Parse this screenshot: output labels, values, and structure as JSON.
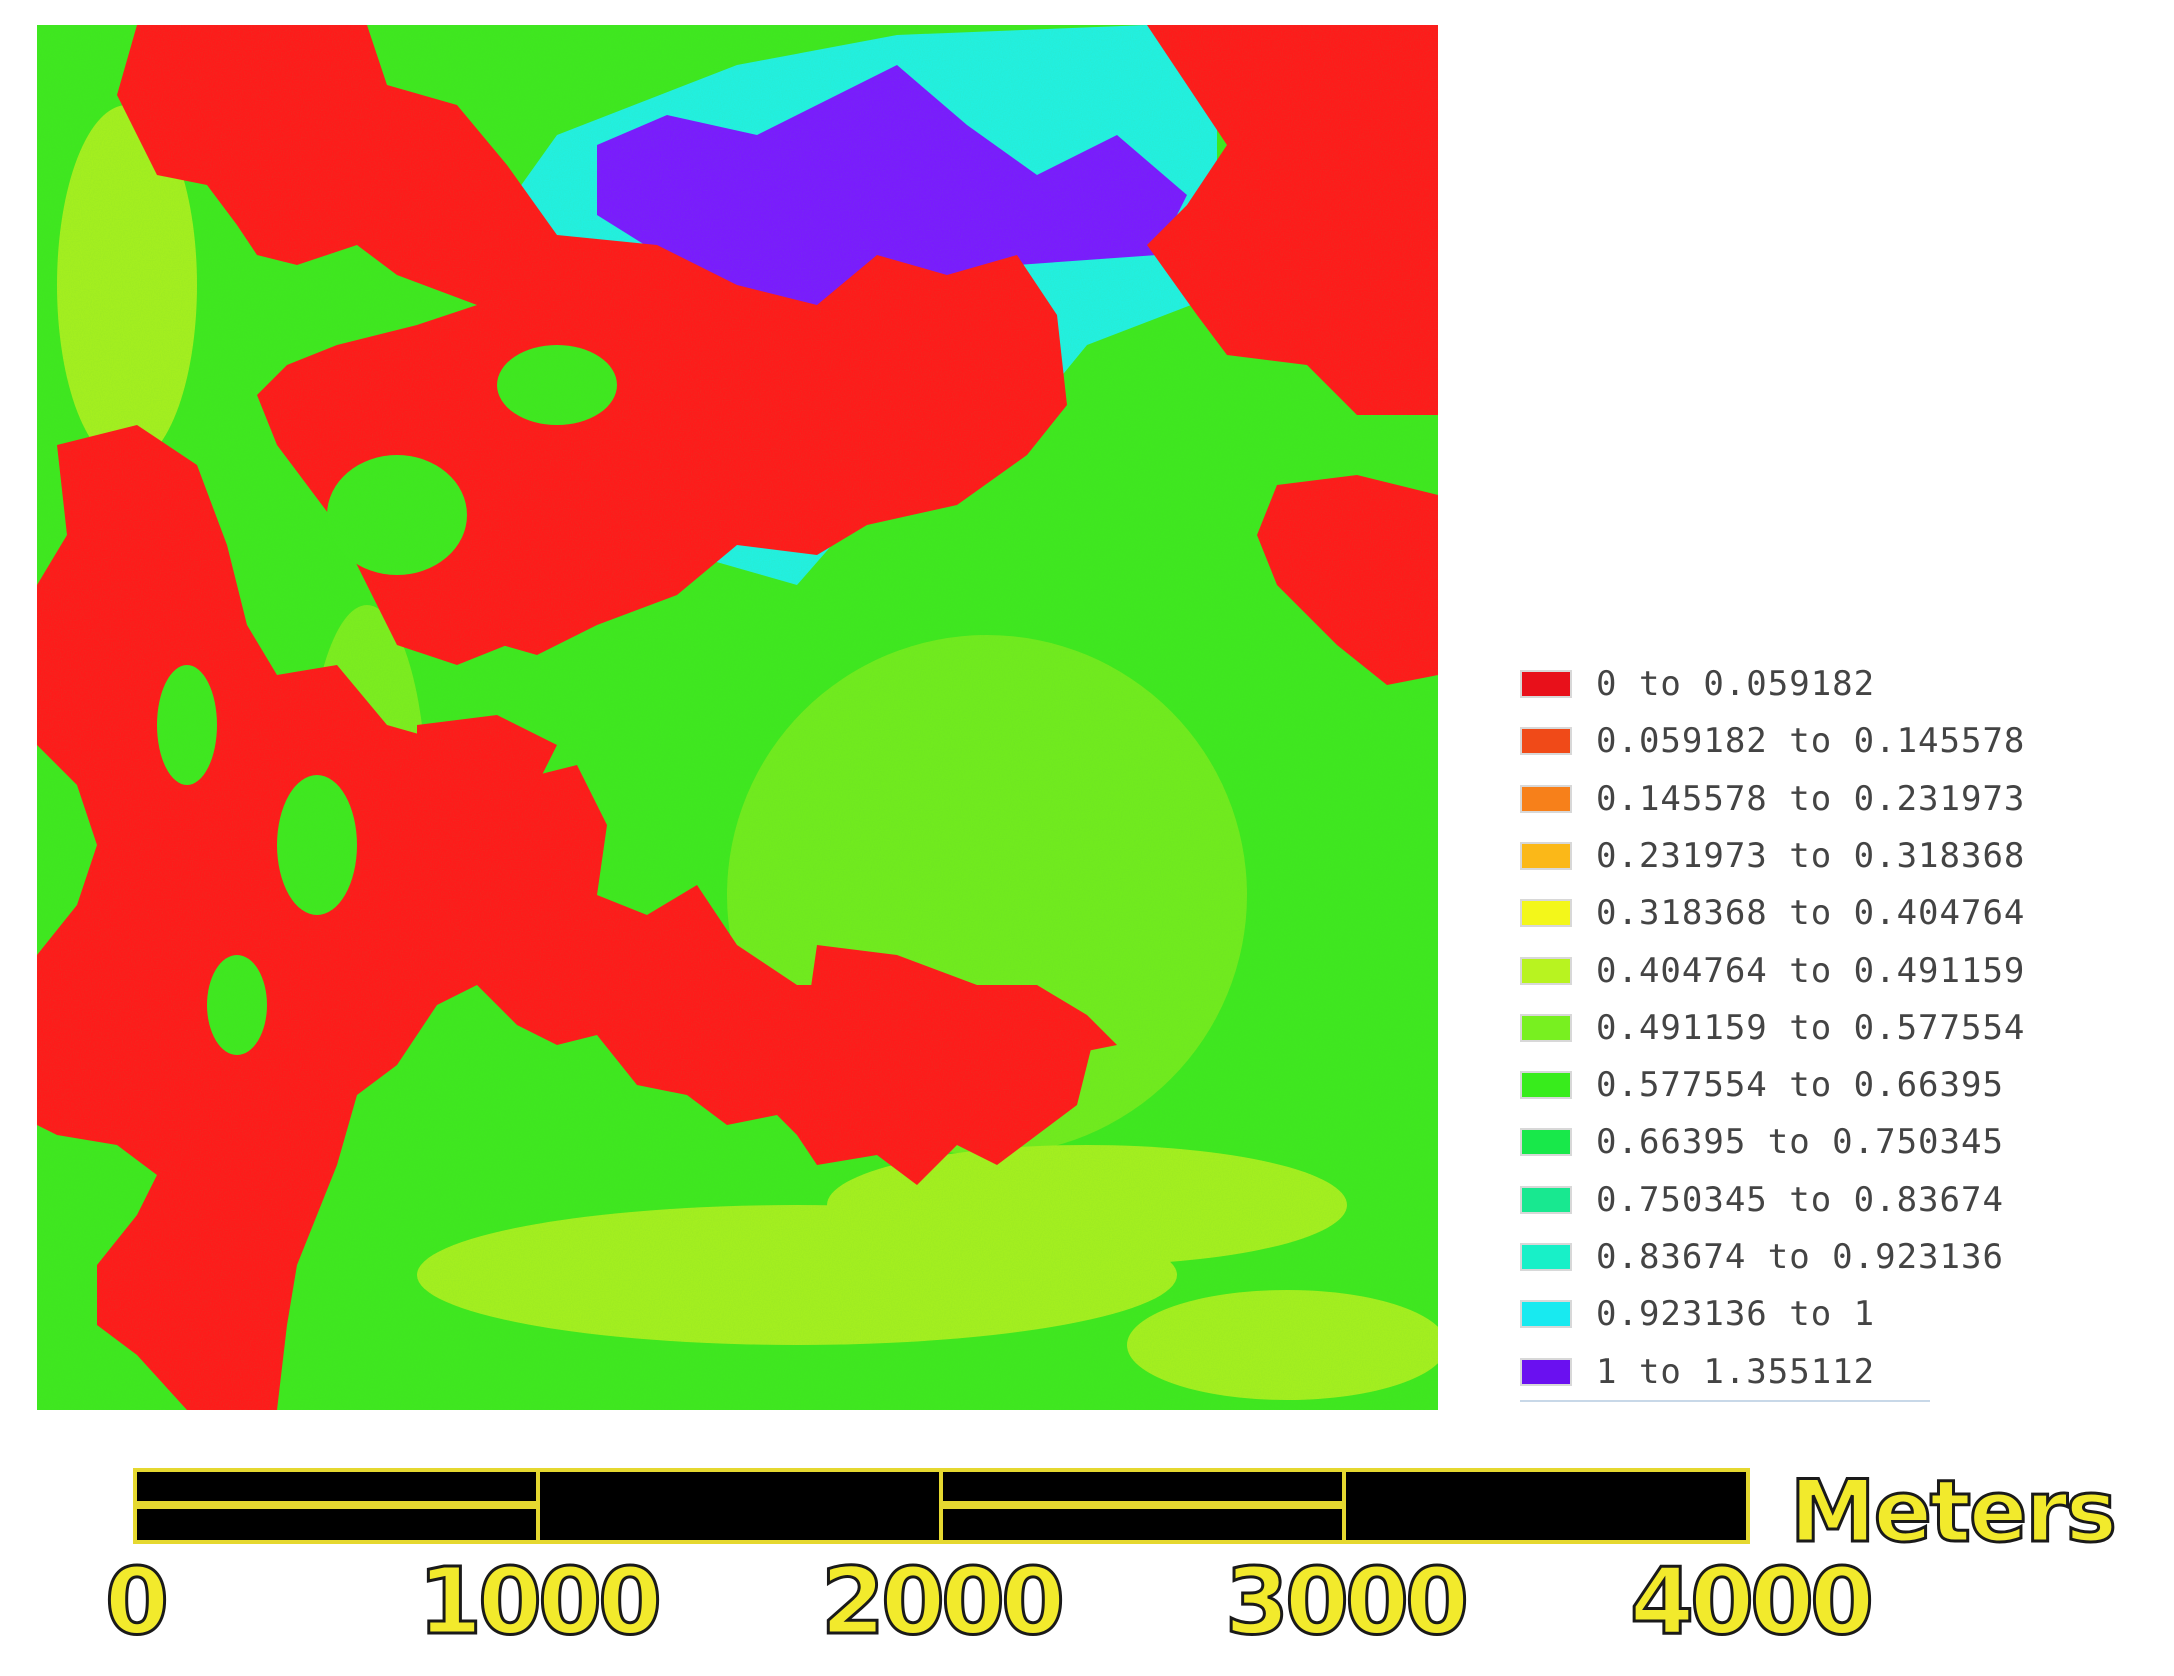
{
  "map": {
    "raster_colors": {
      "background_green": "#3fe81f",
      "red_class": "#ff1a1a",
      "yellow_green": "#b8f020",
      "cyan": "#22f0e0",
      "purple": "#7a1aff"
    }
  },
  "legend": {
    "items": [
      {
        "label": "0 to 0.059182",
        "color": "#e8101a"
      },
      {
        "label": "0.059182 to 0.145578",
        "color": "#f04a18"
      },
      {
        "label": "0.145578 to 0.231973",
        "color": "#f7801a"
      },
      {
        "label": "0.231973 to 0.318368",
        "color": "#fbb818"
      },
      {
        "label": "0.318368 to 0.404764",
        "color": "#f3f71a"
      },
      {
        "label": "0.404764 to 0.491159",
        "color": "#b8f320"
      },
      {
        "label": "0.491159 to 0.577554",
        "color": "#78f020"
      },
      {
        "label": "0.577554 to 0.66395",
        "color": "#38ec1c"
      },
      {
        "label": "0.66395 to 0.750345",
        "color": "#18e84a"
      },
      {
        "label": "0.750345 to 0.83674",
        "color": "#18e890"
      },
      {
        "label": "0.83674 to 0.923136",
        "color": "#18f0c8"
      },
      {
        "label": "0.923136 to 1",
        "color": "#18eaf0"
      },
      {
        "label": "1 to 1.355112",
        "color": "#6a10f0"
      }
    ]
  },
  "scalebar": {
    "units": "Meters",
    "ticks": [
      "0",
      "1000",
      "2000",
      "3000",
      "4000"
    ],
    "colors": {
      "bar": "#000000",
      "outline": "#e5d830",
      "text": "#f2ea2c"
    }
  }
}
